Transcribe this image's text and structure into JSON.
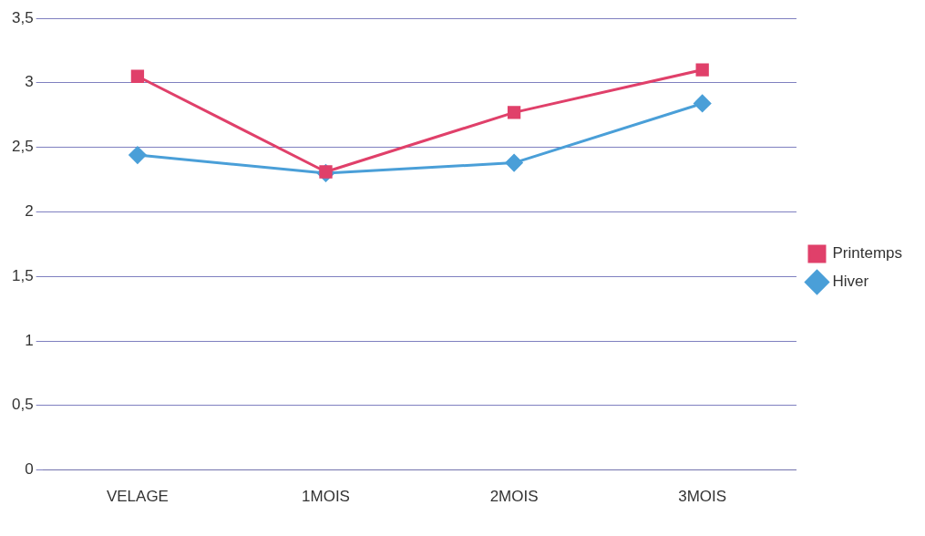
{
  "chart_data": {
    "type": "line",
    "categories": [
      "VELAGE",
      "1MOIS",
      "2MOIS",
      "3MOIS"
    ],
    "series": [
      {
        "name": "Hiver",
        "color": "#4a9fd8",
        "marker": "diamond",
        "values": [
          2.44,
          2.3,
          2.38,
          2.84
        ]
      },
      {
        "name": "Printemps",
        "color": "#e0406a",
        "marker": "square",
        "values": [
          3.05,
          2.31,
          2.77,
          3.1
        ]
      }
    ],
    "ylim": [
      0,
      3.5
    ],
    "yticks": [
      {
        "value": 0,
        "label": "0"
      },
      {
        "value": 0.5,
        "label": "0,5"
      },
      {
        "value": 1,
        "label": "1"
      },
      {
        "value": 1.5,
        "label": "1,5"
      },
      {
        "value": 2,
        "label": "2"
      },
      {
        "value": 2.5,
        "label": "2,5"
      },
      {
        "value": 3,
        "label": "3"
      },
      {
        "value": 3.5,
        "label": "3,5"
      }
    ],
    "grid": "y",
    "legend": "right",
    "line_style": "solid"
  }
}
